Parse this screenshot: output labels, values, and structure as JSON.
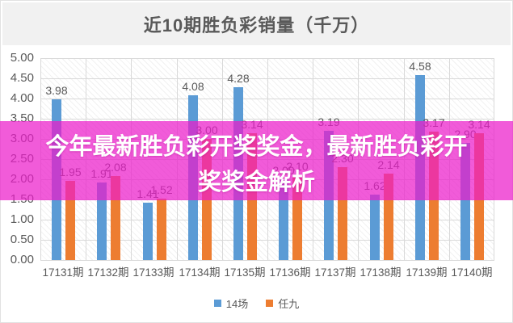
{
  "page": {
    "title": "近10期胜负彩销量（千万）"
  },
  "overlay": {
    "line1": "今年最新胜负彩开奖奖金，最新胜负彩开",
    "line2": "奖奖金解析",
    "band_color": "#ec1cca",
    "text_color": "#ffffff"
  },
  "chart_data": {
    "type": "bar",
    "title": "近10期胜负彩销量（千万）",
    "categories": [
      "17131期",
      "17132期",
      "17133期",
      "17134期",
      "17135期",
      "17136期",
      "17137期",
      "17138期",
      "17139期",
      "17140期"
    ],
    "series": [
      {
        "name": "14场",
        "color": "#5b9bd5",
        "values": [
          3.98,
          1.91,
          1.41,
          4.08,
          4.28,
          2.0,
          3.19,
          1.62,
          4.58,
          2.9
        ]
      },
      {
        "name": "任九",
        "color": "#ed7d31",
        "values": [
          1.95,
          2.08,
          1.52,
          3.0,
          3.14,
          2.1,
          2.3,
          2.14,
          3.17,
          3.14
        ]
      }
    ],
    "xlabel": "",
    "ylabel": "",
    "ylim": [
      0,
      5
    ],
    "ytick_step": 0.5,
    "ytick_labels": [
      "5.00",
      "4.50",
      "4.00",
      "3.50",
      "3.00",
      "2.50",
      "2.00",
      "1.50",
      "1.00",
      "0.50",
      "0.00"
    ],
    "grid": true,
    "plot_background": "diagonal-hatch",
    "value_labels": true,
    "value_label_color": "#595959",
    "legend_position": "bottom",
    "axis_text_color": "#595959",
    "gridline_color": "#d9d9d9"
  }
}
